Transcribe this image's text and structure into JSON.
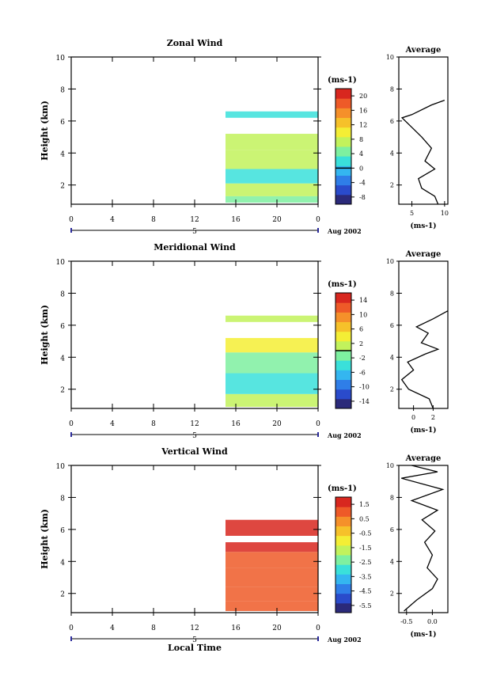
{
  "footer": {
    "xlabel": "Local Time",
    "date_label": "Aug 2002",
    "unit_label": "(ms-1)"
  },
  "chart_data": [
    {
      "type": "heatmap",
      "title": "Zonal Wind",
      "ylabel": "Height (km)",
      "ylim": [
        0.8,
        10
      ],
      "yticks": [
        2,
        4,
        6,
        8,
        10
      ],
      "xticks": [
        "0",
        "4",
        "8",
        "12",
        "16",
        "20",
        "0"
      ],
      "xlim": [
        0,
        24
      ],
      "day_label": "5",
      "date_label": "Aug 2002",
      "colorbar": {
        "unit": "(ms-1)",
        "ticks": [
          "20",
          "16",
          "12",
          "8",
          "4",
          "0",
          "-4",
          "-8"
        ],
        "min": -10,
        "max": 22,
        "zero_line": 0
      },
      "grid": false,
      "field": {
        "time_range": [
          15,
          24
        ],
        "bands": [
          {
            "h": [
              0.9,
              1.3
            ],
            "value": 5
          },
          {
            "h": [
              1.3,
              2.1
            ],
            "value": 8
          },
          {
            "h": [
              2.1,
              3.0
            ],
            "value": 2
          },
          {
            "h": [
              3.0,
              4.2
            ],
            "value": 7
          },
          {
            "h": [
              4.2,
              5.2
            ],
            "value": 6
          },
          {
            "h": [
              6.2,
              6.6
            ],
            "value": 3
          }
        ]
      },
      "average": {
        "title": "Average",
        "xticks": [
          "5",
          "10"
        ],
        "xlim": [
          3,
          10.5
        ],
        "ylim": [
          0.8,
          10
        ],
        "points": [
          [
            9,
            0.8
          ],
          [
            8.5,
            1.3
          ],
          [
            6.5,
            1.8
          ],
          [
            6,
            2.4
          ],
          [
            8.5,
            3
          ],
          [
            7,
            3.5
          ],
          [
            8,
            4.3
          ],
          [
            6.5,
            5
          ],
          [
            5,
            5.6
          ],
          [
            3.5,
            6.2
          ],
          [
            5,
            6.4
          ],
          [
            8,
            7.0
          ],
          [
            10,
            7.3
          ]
        ]
      }
    },
    {
      "type": "heatmap",
      "title": "Meridional Wind",
      "ylabel": "Height (km)",
      "ylim": [
        0.8,
        10
      ],
      "yticks": [
        2,
        4,
        6,
        8,
        10
      ],
      "xticks": [
        "0",
        "4",
        "8",
        "12",
        "16",
        "20",
        "0"
      ],
      "xlim": [
        0,
        24
      ],
      "day_label": "5",
      "date_label": "Aug 2002",
      "colorbar": {
        "unit": "(ms-1)",
        "ticks": [
          "14",
          "10",
          "6",
          "2",
          "-2",
          "-6",
          "-10",
          "-14"
        ],
        "min": -16,
        "max": 16,
        "zero_line": 0
      },
      "grid": false,
      "field": {
        "time_range": [
          15,
          24
        ],
        "bands": [
          {
            "h": [
              0.9,
              1.7
            ],
            "value": 0
          },
          {
            "h": [
              1.7,
              3.0
            ],
            "value": -4
          },
          {
            "h": [
              3.0,
              4.3
            ],
            "value": -1
          },
          {
            "h": [
              4.3,
              5.2
            ],
            "value": 3
          },
          {
            "h": [
              6.2,
              6.6
            ],
            "value": 1
          }
        ]
      },
      "average": {
        "title": "Average",
        "xticks": [
          "0",
          "2"
        ],
        "xlim": [
          -1.5,
          3.5
        ],
        "ylim": [
          0.8,
          10
        ],
        "points": [
          [
            2,
            0.8
          ],
          [
            1.6,
            1.4
          ],
          [
            -0.5,
            2.0
          ],
          [
            -1.2,
            2.6
          ],
          [
            0,
            3.2
          ],
          [
            -0.6,
            3.7
          ],
          [
            1.2,
            4.2
          ],
          [
            2.5,
            4.5
          ],
          [
            0.8,
            4.9
          ],
          [
            1.5,
            5.5
          ],
          [
            0.3,
            5.9
          ],
          [
            2,
            6.4
          ],
          [
            3.5,
            6.9
          ]
        ]
      }
    },
    {
      "type": "heatmap",
      "title": "Vertical Wind",
      "ylabel": "Height (km)",
      "ylim": [
        0.8,
        10
      ],
      "yticks": [
        2,
        4,
        6,
        8,
        10
      ],
      "xticks": [
        "0",
        "4",
        "8",
        "12",
        "16",
        "20",
        "0"
      ],
      "xlim": [
        0,
        24
      ],
      "day_label": "5",
      "date_label": "Aug 2002",
      "colorbar": {
        "unit": "(ms-1)",
        "ticks": [
          "1.5",
          "0.5",
          "-0.5",
          "-1.5",
          "-2.5",
          "-3.5",
          "-4.5",
          "-5.5"
        ],
        "min": -6,
        "max": 2,
        "zero_line": null
      },
      "grid": false,
      "field": {
        "time_range": [
          15,
          24
        ],
        "bands": [
          {
            "h": [
              0.9,
              1.5
            ],
            "value": 1.2
          },
          {
            "h": [
              1.5,
              2.4
            ],
            "value": 0.8
          },
          {
            "h": [
              2.4,
              3.6
            ],
            "value": 0.9
          },
          {
            "h": [
              3.6,
              4.6
            ],
            "value": 1.0
          },
          {
            "h": [
              4.6,
              5.2
            ],
            "value": 1.4
          },
          {
            "h": [
              5.6,
              6.6
            ],
            "value": 1.5
          }
        ]
      },
      "average": {
        "title": "Average",
        "xticks": [
          "-0.5",
          "0.0"
        ],
        "xlim": [
          -0.65,
          0.3
        ],
        "ylim": [
          0.8,
          10
        ],
        "points": [
          [
            -0.55,
            0.9
          ],
          [
            -0.3,
            1.6
          ],
          [
            0,
            2.3
          ],
          [
            0.1,
            2.9
          ],
          [
            -0.1,
            3.6
          ],
          [
            0,
            4.4
          ],
          [
            -0.15,
            5.2
          ],
          [
            0.05,
            5.9
          ],
          [
            -0.2,
            6.6
          ],
          [
            0.1,
            7.2
          ],
          [
            -0.4,
            7.8
          ],
          [
            0.2,
            8.5
          ],
          [
            -0.6,
            9.2
          ],
          [
            0.1,
            9.6
          ],
          [
            -0.4,
            10
          ]
        ]
      }
    }
  ]
}
